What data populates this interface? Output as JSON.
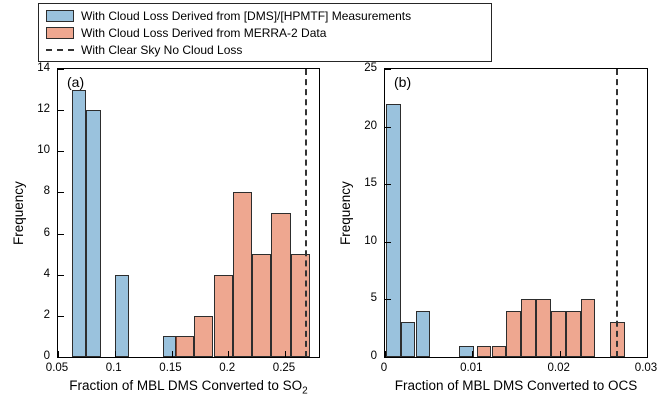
{
  "colors": {
    "blue_face": "rgba(31,119,180,0.45)",
    "salmon_face": "rgba(222,87,42,0.52)",
    "edge": "#2d2d2d",
    "dashed": "#333333"
  },
  "legend": {
    "items": [
      {
        "swatch": "blue_face",
        "label": "With Cloud Loss Derived from [DMS]/[HPMTF] Measurements"
      },
      {
        "swatch": "salmon_face",
        "label": "With Cloud Loss Derived from MERRA-2 Data"
      },
      {
        "swatch": "dashed",
        "label": "With Clear Sky No Cloud Loss"
      }
    ]
  },
  "chart_data": [
    {
      "type": "bar",
      "panel": "(a)",
      "xlabel": "Fraction of MBL DMS Converted to SO",
      "xlabel_sub": "2",
      "ylabel": "Frequency",
      "xlim": [
        0.05,
        0.28
      ],
      "ylim": [
        0,
        14
      ],
      "xticks": [
        0.05,
        0.1,
        0.15,
        0.2,
        0.25
      ],
      "xtick_labels": [
        "0.05",
        "0.1",
        "0.15",
        "0.2",
        "0.25"
      ],
      "yticks": [
        0,
        2,
        4,
        6,
        8,
        10,
        12,
        14
      ],
      "ytick_labels": [
        "0",
        "2",
        "4",
        "6",
        "8",
        "10",
        "12",
        "14"
      ],
      "series": [
        {
          "name": "With Cloud Loss Derived from [DMS]/[HPMTF] Measurements",
          "color": "blue_face",
          "bars": [
            {
              "x0": 0.0625,
              "x1": 0.075,
              "h": 13
            },
            {
              "x0": 0.075,
              "x1": 0.0875,
              "h": 12
            },
            {
              "x0": 0.1,
              "x1": 0.1125,
              "h": 4
            },
            {
              "x0": 0.1425,
              "x1": 0.155,
              "h": 1
            }
          ]
        },
        {
          "name": "With Cloud Loss Derived from MERRA-2 Data",
          "color": "salmon_face",
          "bars": [
            {
              "x0": 0.153,
              "x1": 0.17,
              "h": 1
            },
            {
              "x0": 0.17,
              "x1": 0.187,
              "h": 2
            },
            {
              "x0": 0.187,
              "x1": 0.204,
              "h": 4
            },
            {
              "x0": 0.204,
              "x1": 0.221,
              "h": 8
            },
            {
              "x0": 0.221,
              "x1": 0.238,
              "h": 5
            },
            {
              "x0": 0.238,
              "x1": 0.255,
              "h": 7
            },
            {
              "x0": 0.255,
              "x1": 0.272,
              "h": 5
            }
          ]
        }
      ],
      "vline": {
        "x": 0.268,
        "label": "With Clear Sky No Cloud Loss"
      }
    },
    {
      "type": "bar",
      "panel": "(b)",
      "xlabel": "Fraction of MBL DMS Converted to OCS",
      "xlabel_sub": "",
      "ylabel": "Frequency",
      "xlim": [
        0,
        0.03
      ],
      "ylim": [
        0,
        25
      ],
      "xticks": [
        0,
        0.01,
        0.02,
        0.03
      ],
      "xtick_labels": [
        "0",
        "0.01",
        "0.02",
        "0.03"
      ],
      "yticks": [
        0,
        5,
        10,
        15,
        20,
        25
      ],
      "ytick_labels": [
        "0",
        "5",
        "10",
        "15",
        "20",
        "25"
      ],
      "series": [
        {
          "name": "With Cloud Loss Derived from [DMS]/[HPMTF] Measurements",
          "color": "blue_face",
          "bars": [
            {
              "x0": 0.0001,
              "x1": 0.0018,
              "h": 22
            },
            {
              "x0": 0.0018,
              "x1": 0.0035,
              "h": 3
            },
            {
              "x0": 0.0035,
              "x1": 0.0052,
              "h": 4
            },
            {
              "x0": 0.0085,
              "x1": 0.0102,
              "h": 1
            }
          ]
        },
        {
          "name": "With Cloud Loss Derived from MERRA-2 Data",
          "color": "salmon_face",
          "bars": [
            {
              "x0": 0.0105,
              "x1": 0.0122,
              "h": 1
            },
            {
              "x0": 0.0122,
              "x1": 0.0139,
              "h": 1
            },
            {
              "x0": 0.0139,
              "x1": 0.0156,
              "h": 4
            },
            {
              "x0": 0.0156,
              "x1": 0.0173,
              "h": 5
            },
            {
              "x0": 0.0173,
              "x1": 0.019,
              "h": 5
            },
            {
              "x0": 0.019,
              "x1": 0.0207,
              "h": 4
            },
            {
              "x0": 0.0207,
              "x1": 0.0224,
              "h": 4
            },
            {
              "x0": 0.0224,
              "x1": 0.0241,
              "h": 5
            },
            {
              "x0": 0.0258,
              "x1": 0.0275,
              "h": 3
            }
          ]
        }
      ],
      "vline": {
        "x": 0.0265,
        "label": "With Clear Sky No Cloud Loss"
      }
    }
  ]
}
